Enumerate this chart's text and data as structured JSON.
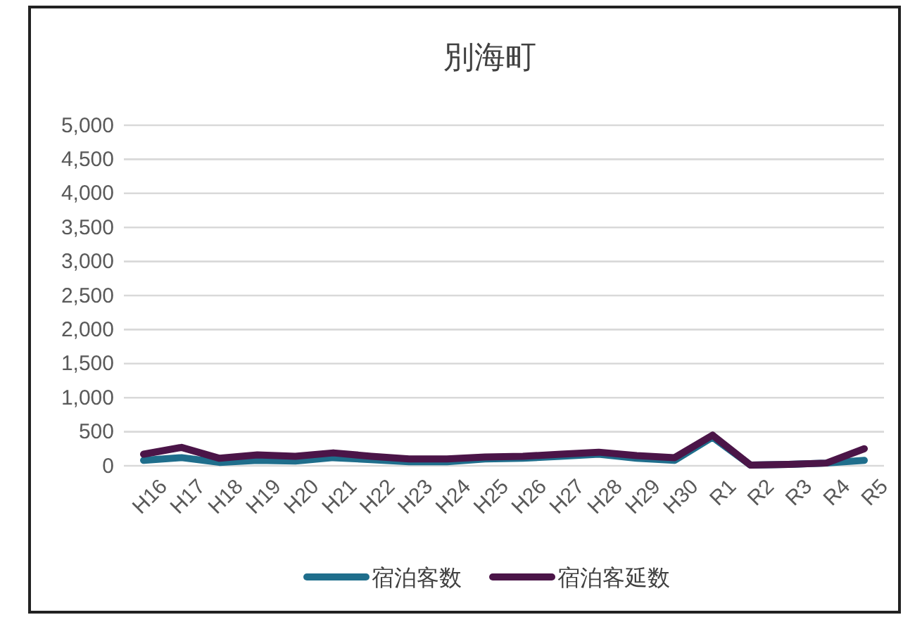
{
  "chart_data": {
    "type": "line",
    "title": "別海町",
    "categories": [
      "H16",
      "H17",
      "H18",
      "H19",
      "H20",
      "H21",
      "H22",
      "H23",
      "H24",
      "H25",
      "H26",
      "H27",
      "H28",
      "H29",
      "H30",
      "R1",
      "R2",
      "R3",
      "R4",
      "R5"
    ],
    "series": [
      {
        "name": "宿泊客数",
        "color": "#1f6e8c",
        "values": [
          80,
          120,
          50,
          80,
          70,
          120,
          90,
          60,
          60,
          100,
          110,
          140,
          170,
          110,
          80,
          420,
          10,
          20,
          40,
          80
        ]
      },
      {
        "name": "宿泊客延数",
        "color": "#4b1548",
        "values": [
          170,
          270,
          110,
          160,
          140,
          190,
          140,
          100,
          100,
          130,
          140,
          170,
          200,
          150,
          120,
          450,
          10,
          20,
          40,
          250
        ]
      }
    ],
    "ylim": [
      0,
      5000
    ],
    "yticks": [
      {
        "value": 0,
        "label": "0"
      },
      {
        "value": 500,
        "label": "500"
      },
      {
        "value": 1000,
        "label": "1,000"
      },
      {
        "value": 1500,
        "label": "1,500"
      },
      {
        "value": 2000,
        "label": "2,000"
      },
      {
        "value": 2500,
        "label": "2,500"
      },
      {
        "value": 3000,
        "label": "3,000"
      },
      {
        "value": 3500,
        "label": "3,500"
      },
      {
        "value": 4000,
        "label": "4,000"
      },
      {
        "value": 4500,
        "label": "4,500"
      },
      {
        "value": 5000,
        "label": "5,000"
      }
    ],
    "grid": "y",
    "legend": "bottom",
    "marker": "none",
    "line_style": "solid"
  }
}
